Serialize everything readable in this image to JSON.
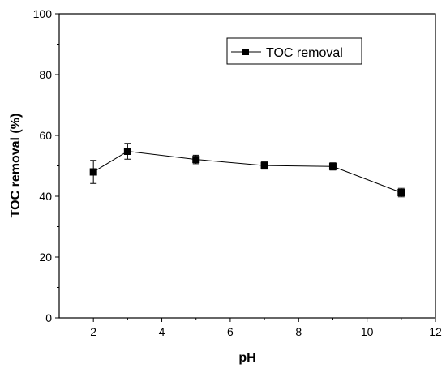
{
  "chart_data": {
    "type": "line",
    "title": "",
    "xlabel": "pH",
    "ylabel": "TOC removal (%)",
    "xlim": [
      1,
      12
    ],
    "ylim": [
      0,
      100
    ],
    "x_ticks": [
      2,
      4,
      6,
      8,
      10,
      12
    ],
    "y_ticks": [
      0,
      20,
      40,
      60,
      80,
      100
    ],
    "x_tick_labels": [
      "2",
      "4",
      "6",
      "8",
      "10",
      "12"
    ],
    "y_tick_labels": [
      "0",
      "20",
      "40",
      "60",
      "80",
      "100"
    ],
    "grid": false,
    "legend": {
      "position": "top-right",
      "entries": [
        "TOC removal"
      ]
    },
    "series": [
      {
        "name": "TOC removal",
        "marker": "filled-square",
        "color": "#000000",
        "x": [
          2,
          3,
          5,
          7,
          9,
          11
        ],
        "y": [
          48.0,
          54.8,
          52.1,
          50.1,
          49.8,
          41.2
        ],
        "error": [
          3.8,
          2.6,
          1.4,
          1.2,
          1.2,
          1.4
        ]
      }
    ]
  }
}
